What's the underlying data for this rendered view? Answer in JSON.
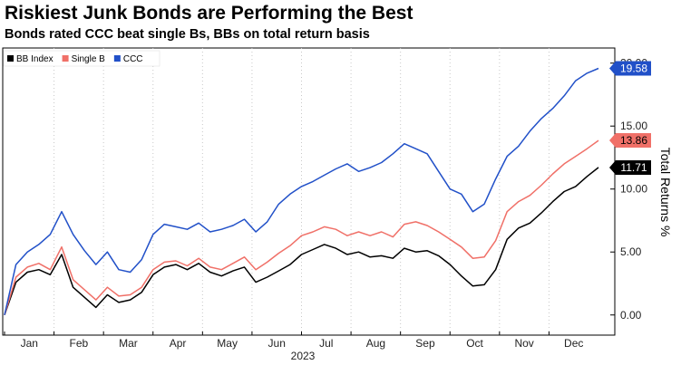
{
  "header": {
    "title": "Riskiest Junk Bonds are Performing the Best",
    "subtitle": "Bonds rated CCC beat single Bs, BBs on total return basis"
  },
  "chart_data": {
    "type": "line",
    "title": "Riskiest Junk Bonds are Performing the Best",
    "subtitle": "Bonds rated CCC beat single Bs, BBs on total return basis",
    "xlabel": "2023",
    "ylabel": "Total Returns %",
    "x_ticks": [
      "Jan",
      "Feb",
      "Mar",
      "Apr",
      "May",
      "Jun",
      "Jul",
      "Aug",
      "Sep",
      "Oct",
      "Nov",
      "Dec"
    ],
    "y_ticks": [
      "0.00",
      "5.00",
      "10.00",
      "15.00",
      "20.00"
    ],
    "ylim": [
      -1.6,
      21.2
    ],
    "y_axis_side": "right",
    "legend_position": "top-left",
    "grid": "vertical dotted at month starts",
    "x": [
      "Jan 1",
      "Jan 7",
      "Jan 14",
      "Jan 21",
      "Jan 28",
      "Feb 4",
      "Feb 11",
      "Feb 18",
      "Feb 25",
      "Mar 4",
      "Mar 11",
      "Mar 18",
      "Mar 25",
      "Apr 1",
      "Apr 8",
      "Apr 15",
      "Apr 22",
      "Apr 29",
      "May 6",
      "May 13",
      "May 20",
      "May 27",
      "Jun 3",
      "Jun 10",
      "Jun 17",
      "Jun 24",
      "Jul 1",
      "Jul 8",
      "Jul 15",
      "Jul 22",
      "Jul 29",
      "Aug 5",
      "Aug 12",
      "Aug 19",
      "Aug 26",
      "Sep 2",
      "Sep 9",
      "Sep 16",
      "Sep 23",
      "Sep 30",
      "Oct 7",
      "Oct 14",
      "Oct 21",
      "Oct 28",
      "Nov 4",
      "Nov 11",
      "Nov 18",
      "Nov 25",
      "Dec 2",
      "Dec 9",
      "Dec 16",
      "Dec 23",
      "Dec 29"
    ],
    "series": [
      {
        "name": "BB Index",
        "color": "#000000",
        "values": [
          0,
          2.6,
          3.4,
          3.6,
          3.2,
          4.8,
          2.2,
          1.4,
          0.6,
          1.6,
          1.0,
          1.2,
          1.8,
          3.2,
          3.8,
          4.0,
          3.6,
          4.1,
          3.4,
          3.1,
          3.5,
          3.8,
          2.6,
          3.0,
          3.5,
          4.0,
          4.8,
          5.2,
          5.6,
          5.3,
          4.8,
          5.0,
          4.6,
          4.7,
          4.5,
          5.3,
          5.0,
          5.1,
          4.7,
          4.0,
          3.1,
          2.3,
          2.4,
          3.6,
          6.0,
          6.9,
          7.3,
          8.1,
          9.0,
          9.8,
          10.2,
          11.0,
          11.71
        ]
      },
      {
        "name": "Single B",
        "color": "#f07068",
        "values": [
          0,
          3.0,
          3.8,
          4.1,
          3.6,
          5.4,
          2.8,
          2.0,
          1.2,
          2.2,
          1.5,
          1.6,
          2.2,
          3.6,
          4.2,
          4.3,
          3.9,
          4.5,
          3.8,
          3.6,
          4.1,
          4.6,
          3.6,
          4.2,
          4.9,
          5.5,
          6.3,
          6.6,
          7.0,
          6.8,
          6.3,
          6.6,
          6.3,
          6.6,
          6.2,
          7.2,
          7.4,
          7.1,
          6.6,
          6.0,
          5.4,
          4.5,
          4.6,
          5.9,
          8.2,
          9.0,
          9.5,
          10.3,
          11.2,
          12.0,
          12.6,
          13.2,
          13.86
        ]
      },
      {
        "name": "CCC",
        "color": "#2150c8",
        "values": [
          0,
          4.0,
          5.0,
          5.6,
          6.4,
          8.2,
          6.4,
          5.1,
          4.0,
          5.0,
          3.6,
          3.4,
          4.4,
          6.4,
          7.2,
          7.0,
          6.8,
          7.3,
          6.6,
          6.8,
          7.1,
          7.6,
          6.6,
          7.4,
          8.8,
          9.6,
          10.2,
          10.6,
          11.1,
          11.6,
          12.0,
          11.4,
          11.7,
          12.1,
          12.8,
          13.6,
          13.2,
          12.8,
          11.4,
          10.0,
          9.6,
          8.2,
          8.8,
          10.8,
          12.6,
          13.4,
          14.6,
          15.6,
          16.4,
          17.4,
          18.6,
          19.2,
          19.58
        ]
      }
    ],
    "last_value_labels": [
      "19.58",
      "13.86",
      "11.71"
    ]
  }
}
